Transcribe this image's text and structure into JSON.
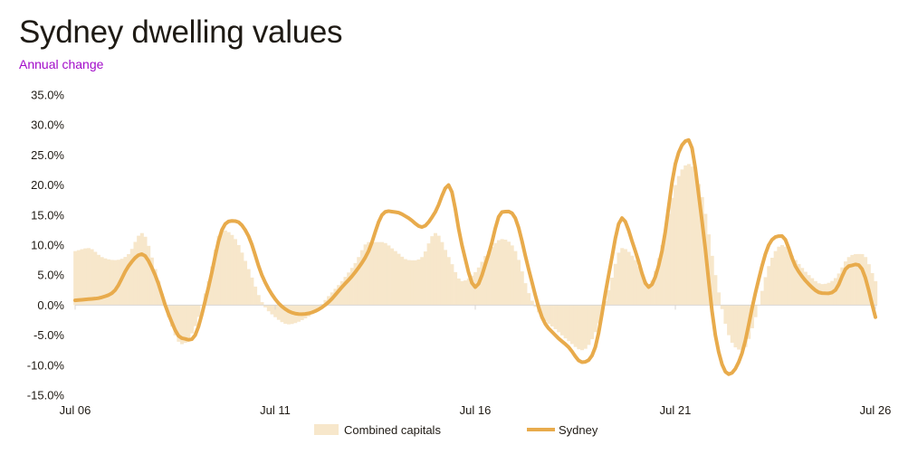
{
  "header": {
    "title": "Sydney dwelling values",
    "subtitle": "Annual change"
  },
  "colors": {
    "combined_fill": "#f7e7cb",
    "sydney_line": "#e8ab4c",
    "zero_line": "#d9d6d2",
    "subtitle": "#a20cc9",
    "text": "#1f1a14"
  },
  "chart_data": {
    "type": "area",
    "title": "Sydney dwelling values",
    "subtitle": "Annual change",
    "xlabel": "",
    "ylabel": "",
    "ylim": [
      -15,
      35
    ],
    "yticks": [
      -15,
      -10,
      -5,
      0,
      5,
      10,
      15,
      20,
      25,
      30,
      35
    ],
    "ytick_labels": [
      "-15.0%",
      "-10.0%",
      "-5.0%",
      "0.0%",
      "5.0%",
      "10.0%",
      "15.0%",
      "20.0%",
      "25.0%",
      "30.0%",
      "35.0%"
    ],
    "x_range": [
      "2006-07",
      "2026-07"
    ],
    "xtick_labels": [
      {
        "date": "2006-07",
        "label": "Jul 06"
      },
      {
        "date": "2011-07",
        "label": "Jul 11"
      },
      {
        "date": "2016-07",
        "label": "Jul 16"
      },
      {
        "date": "2021-07",
        "label": "Jul 21"
      },
      {
        "date": "2026-07",
        "label": "Jul 26"
      }
    ],
    "grid": false,
    "legend_position": "bottom",
    "series": [
      {
        "name": "Combined capitals",
        "style": "bars",
        "points": [
          [
            "2006-07",
            9.0
          ],
          [
            "2006-11",
            9.5
          ],
          [
            "2007-03",
            8.0
          ],
          [
            "2007-07",
            7.5
          ],
          [
            "2007-11",
            8.5
          ],
          [
            "2008-03",
            12.0
          ],
          [
            "2008-07",
            6.0
          ],
          [
            "2008-11",
            -2.0
          ],
          [
            "2009-03",
            -6.5
          ],
          [
            "2009-07",
            -3.5
          ],
          [
            "2009-11",
            4.0
          ],
          [
            "2010-03",
            12.5
          ],
          [
            "2010-07",
            11.0
          ],
          [
            "2010-11",
            6.0
          ],
          [
            "2011-03",
            0.5
          ],
          [
            "2011-07",
            -2.0
          ],
          [
            "2011-11",
            -3.2
          ],
          [
            "2012-03",
            -2.5
          ],
          [
            "2012-07",
            -1.0
          ],
          [
            "2012-11",
            1.5
          ],
          [
            "2013-03",
            4.0
          ],
          [
            "2013-07",
            7.0
          ],
          [
            "2013-11",
            10.5
          ],
          [
            "2014-03",
            10.5
          ],
          [
            "2014-07",
            9.0
          ],
          [
            "2014-11",
            7.5
          ],
          [
            "2015-03",
            8.0
          ],
          [
            "2015-07",
            12.0
          ],
          [
            "2015-11",
            8.0
          ],
          [
            "2016-03",
            4.0
          ],
          [
            "2016-07",
            5.5
          ],
          [
            "2016-11",
            9.0
          ],
          [
            "2017-03",
            11.0
          ],
          [
            "2017-07",
            9.0
          ],
          [
            "2017-11",
            2.0
          ],
          [
            "2018-03",
            -2.0
          ],
          [
            "2018-07",
            -4.0
          ],
          [
            "2018-11",
            -6.0
          ],
          [
            "2019-03",
            -7.5
          ],
          [
            "2019-07",
            -4.5
          ],
          [
            "2019-11",
            2.5
          ],
          [
            "2020-03",
            9.5
          ],
          [
            "2020-07",
            7.5
          ],
          [
            "2020-11",
            3.5
          ],
          [
            "2021-03",
            10.0
          ],
          [
            "2021-07",
            20.0
          ],
          [
            "2021-11",
            23.5
          ],
          [
            "2022-03",
            18.0
          ],
          [
            "2022-07",
            5.0
          ],
          [
            "2022-11",
            -5.0
          ],
          [
            "2023-03",
            -7.5
          ],
          [
            "2023-07",
            -2.0
          ],
          [
            "2023-11",
            6.5
          ],
          [
            "2024-03",
            10.0
          ],
          [
            "2024-07",
            7.5
          ],
          [
            "2024-11",
            5.0
          ],
          [
            "2025-03",
            3.5
          ],
          [
            "2025-07",
            4.5
          ],
          [
            "2025-11",
            8.0
          ],
          [
            "2026-03",
            8.5
          ],
          [
            "2026-07",
            4.0
          ]
        ]
      },
      {
        "name": "Sydney",
        "style": "line",
        "points": [
          [
            "2006-07",
            0.8
          ],
          [
            "2006-11",
            1.0
          ],
          [
            "2007-03",
            1.3
          ],
          [
            "2007-07",
            2.5
          ],
          [
            "2007-11",
            6.5
          ],
          [
            "2008-03",
            8.5
          ],
          [
            "2008-07",
            5.0
          ],
          [
            "2008-11",
            -1.5
          ],
          [
            "2009-03",
            -5.5
          ],
          [
            "2009-07",
            -5.0
          ],
          [
            "2009-11",
            3.0
          ],
          [
            "2010-03",
            12.5
          ],
          [
            "2010-07",
            14.0
          ],
          [
            "2010-11",
            11.5
          ],
          [
            "2011-03",
            5.0
          ],
          [
            "2011-07",
            1.0
          ],
          [
            "2011-11",
            -1.0
          ],
          [
            "2012-03",
            -1.5
          ],
          [
            "2012-07",
            -1.0
          ],
          [
            "2012-11",
            0.5
          ],
          [
            "2013-03",
            3.0
          ],
          [
            "2013-07",
            5.5
          ],
          [
            "2013-11",
            9.0
          ],
          [
            "2014-03",
            15.0
          ],
          [
            "2014-07",
            15.5
          ],
          [
            "2014-11",
            14.5
          ],
          [
            "2015-03",
            13.0
          ],
          [
            "2015-07",
            15.5
          ],
          [
            "2015-11",
            20.0
          ],
          [
            "2016-03",
            10.0
          ],
          [
            "2016-07",
            3.0
          ],
          [
            "2016-11",
            8.5
          ],
          [
            "2017-03",
            15.5
          ],
          [
            "2017-07",
            14.5
          ],
          [
            "2017-11",
            6.0
          ],
          [
            "2018-03",
            -2.0
          ],
          [
            "2018-07",
            -5.0
          ],
          [
            "2018-11",
            -7.0
          ],
          [
            "2019-03",
            -9.5
          ],
          [
            "2019-07",
            -7.0
          ],
          [
            "2019-11",
            5.0
          ],
          [
            "2020-03",
            14.5
          ],
          [
            "2020-07",
            9.0
          ],
          [
            "2020-11",
            3.0
          ],
          [
            "2021-03",
            9.0
          ],
          [
            "2021-07",
            23.5
          ],
          [
            "2021-11",
            27.5
          ],
          [
            "2022-03",
            14.0
          ],
          [
            "2022-07",
            -5.0
          ],
          [
            "2022-11",
            -11.5
          ],
          [
            "2023-03",
            -8.0
          ],
          [
            "2023-07",
            2.0
          ],
          [
            "2023-11",
            10.0
          ],
          [
            "2024-03",
            11.5
          ],
          [
            "2024-07",
            6.5
          ],
          [
            "2024-11",
            3.5
          ],
          [
            "2025-03",
            2.0
          ],
          [
            "2025-07",
            2.5
          ],
          [
            "2025-11",
            6.5
          ],
          [
            "2026-03",
            6.0
          ],
          [
            "2026-07",
            -2.0
          ]
        ]
      }
    ]
  }
}
